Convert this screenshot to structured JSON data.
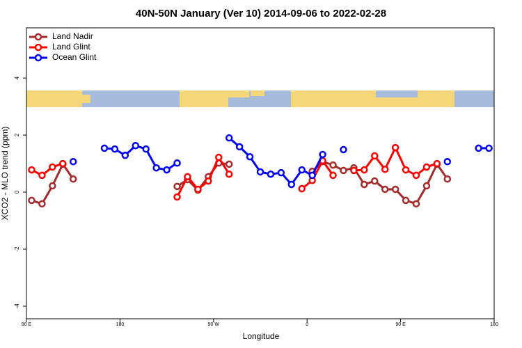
{
  "chart_data": {
    "type": "line",
    "title": "40N-50N January (Ver 10)   2014-09-06 to 2022-02-28",
    "x_label": "Longitude",
    "y_label": "XCO2 - MLO trend (ppm)",
    "xlim": [
      90,
      540
    ],
    "xticks": [
      {
        "value": 90,
        "label": "90 E"
      },
      {
        "value": 180,
        "label": "180"
      },
      {
        "value": 270,
        "label": "90 W"
      },
      {
        "value": 360,
        "label": "0"
      },
      {
        "value": 450,
        "label": "90 E"
      },
      {
        "value": 540,
        "label": "180"
      }
    ],
    "ylim": [
      -4.44,
      5.76
    ],
    "yticks": [
      -4,
      -2,
      0,
      2,
      4
    ],
    "legend": "top-left",
    "x": [
      95,
      105,
      115,
      125,
      135,
      145,
      155,
      165,
      175,
      185,
      195,
      205,
      215,
      225,
      235,
      245,
      255,
      265,
      275,
      285,
      295,
      305,
      315,
      325,
      335,
      345,
      355,
      365,
      375,
      385,
      395,
      405,
      415,
      425,
      435,
      445,
      455,
      465,
      475,
      485,
      495,
      505,
      515,
      525,
      535
    ],
    "series": [
      {
        "name": "Land Nadir",
        "color": "#a52a2a",
        "values": [
          -0.29,
          -0.41,
          0.22,
          0.98,
          0.46,
          null,
          null,
          null,
          null,
          null,
          null,
          null,
          null,
          null,
          0.2,
          0.44,
          0.07,
          0.54,
          1.02,
          0.98,
          null,
          null,
          null,
          null,
          null,
          null,
          null,
          0.73,
          1.07,
          0.95,
          0.76,
          0.85,
          0.27,
          0.39,
          0.1,
          0.1,
          -0.29,
          -0.41,
          0.22,
          0.98,
          0.46,
          null,
          null,
          null,
          null
        ]
      },
      {
        "name": "Land Glint",
        "color": "#ff0000",
        "values": [
          0.78,
          0.59,
          0.88,
          1.0,
          null,
          null,
          null,
          null,
          null,
          null,
          null,
          null,
          null,
          null,
          -0.17,
          0.54,
          0.1,
          0.39,
          1.22,
          0.63,
          null,
          null,
          null,
          null,
          null,
          null,
          0.12,
          0.41,
          1.1,
          0.59,
          null,
          0.76,
          0.78,
          1.27,
          0.8,
          1.56,
          0.78,
          0.59,
          0.88,
          1.0,
          null,
          null,
          null,
          null,
          null
        ]
      },
      {
        "name": "Ocean Glint",
        "color": "#0000ff",
        "values": [
          null,
          null,
          null,
          null,
          1.07,
          null,
          null,
          1.54,
          1.51,
          1.29,
          1.63,
          1.51,
          0.85,
          0.78,
          1.02,
          null,
          null,
          null,
          null,
          1.9,
          1.59,
          1.24,
          0.71,
          0.63,
          0.68,
          0.27,
          0.78,
          0.59,
          1.32,
          null,
          1.49,
          null,
          null,
          null,
          null,
          null,
          null,
          null,
          null,
          null,
          1.07,
          null,
          null,
          1.54,
          1.54
        ]
      }
    ]
  }
}
